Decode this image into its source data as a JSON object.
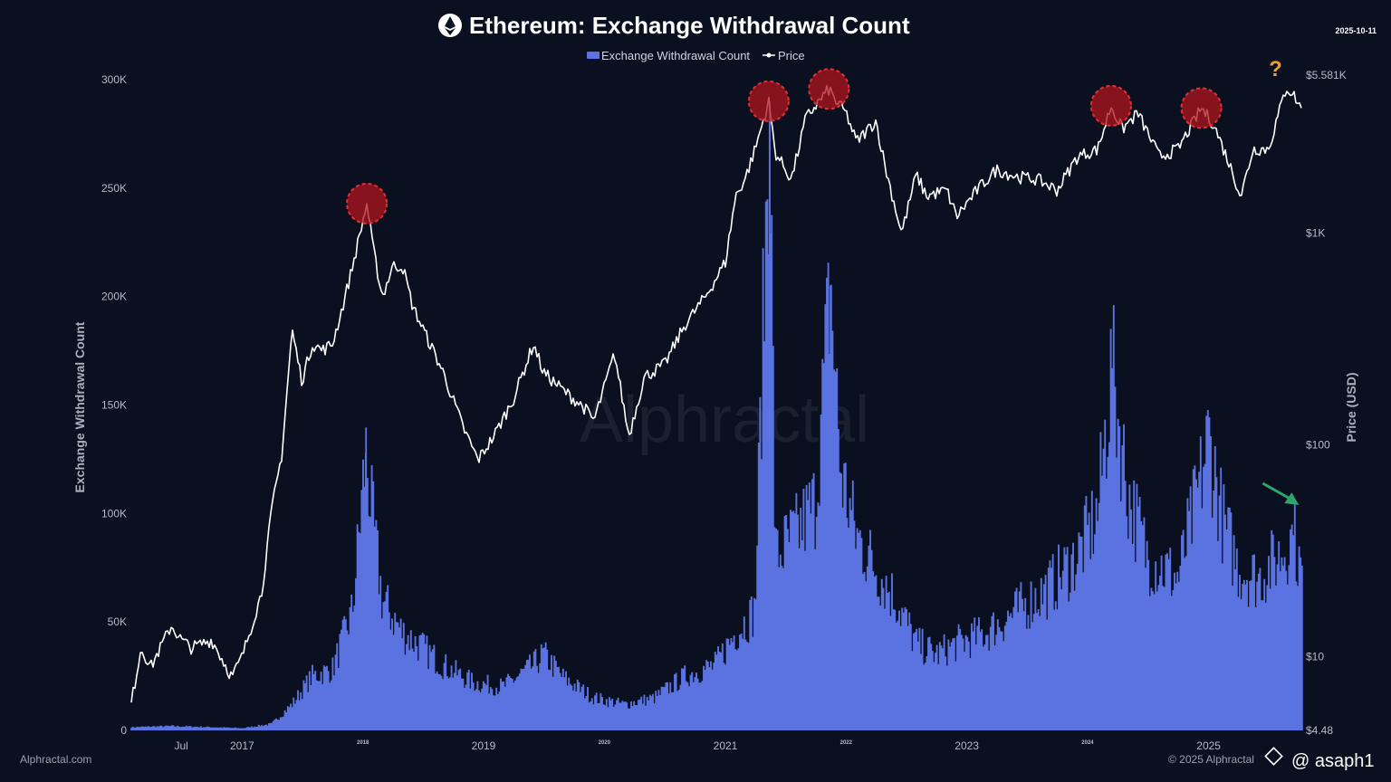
{
  "header": {
    "title": "Ethereum: Exchange Withdrawal Count",
    "date": "2025-10-11",
    "logo_icon": "ethereum-logo-icon"
  },
  "legend": {
    "items": [
      {
        "label": "Exchange Withdrawal Count",
        "color": "#5b73e0"
      },
      {
        "label": "Price",
        "color": "#ffffff"
      }
    ]
  },
  "footer": {
    "left": "Alphractal.com",
    "right": "© 2025 Alphractal",
    "credit": "@ asaph1"
  },
  "watermark": "Alphractal",
  "annotation": {
    "question_mark": "?"
  },
  "colors": {
    "background": "#0b1020",
    "bars": "#5b73e0",
    "price": "#ffffff",
    "peak_marker": "#b0141e",
    "arrow": "#2fa36b"
  },
  "chart_data": {
    "type": "area",
    "title": "Ethereum: Exchange Withdrawal Count",
    "xlabel": "",
    "ylabel": "Exchange Withdrawal Count",
    "y2label": "Price (USD)",
    "ylim": [
      0,
      300000
    ],
    "y2lim": [
      4.48,
      5581
    ],
    "y2scale": "log",
    "x_ticks": [
      {
        "label": "Jul",
        "x": "2016-07-01",
        "size": "normal"
      },
      {
        "label": "2017",
        "x": "2017-01-01",
        "size": "normal"
      },
      {
        "label": "2018",
        "x": "2018-01-01",
        "size": "small"
      },
      {
        "label": "2019",
        "x": "2019-01-01",
        "size": "normal"
      },
      {
        "label": "2020",
        "x": "2020-01-01",
        "size": "small"
      },
      {
        "label": "2021",
        "x": "2021-01-01",
        "size": "normal"
      },
      {
        "label": "2022",
        "x": "2022-01-01",
        "size": "small"
      },
      {
        "label": "2023",
        "x": "2023-01-01",
        "size": "normal"
      },
      {
        "label": "2024",
        "x": "2024-01-01",
        "size": "small"
      },
      {
        "label": "2025",
        "x": "2025-01-01",
        "size": "normal"
      }
    ],
    "y_ticks": [
      {
        "label": "0",
        "value": 0
      },
      {
        "label": "50K",
        "value": 50000
      },
      {
        "label": "100K",
        "value": 100000
      },
      {
        "label": "150K",
        "value": 150000
      },
      {
        "label": "200K",
        "value": 200000
      },
      {
        "label": "250K",
        "value": 250000
      },
      {
        "label": "300K",
        "value": 300000
      }
    ],
    "y2_ticks": [
      {
        "label": "$4.48",
        "value": 4.48
      },
      {
        "label": "$10",
        "value": 10
      },
      {
        "label": "$100",
        "value": 100
      },
      {
        "label": "$1K",
        "value": 1000
      },
      {
        "label": "$5.581K",
        "value": 5581
      }
    ],
    "series": [
      {
        "name": "Exchange Withdrawal Count",
        "type": "area",
        "axis": "left",
        "points": [
          [
            "2016-02-01",
            1500
          ],
          [
            "2016-06-01",
            2000
          ],
          [
            "2016-10-01",
            1500
          ],
          [
            "2017-01-01",
            1000
          ],
          [
            "2017-04-01",
            3000
          ],
          [
            "2017-06-01",
            12000
          ],
          [
            "2017-08-01",
            25000
          ],
          [
            "2017-10-01",
            28000
          ],
          [
            "2017-12-01",
            55000
          ],
          [
            "2018-01-10",
            128000
          ],
          [
            "2018-02-01",
            95000
          ],
          [
            "2018-03-01",
            60000
          ],
          [
            "2018-05-01",
            45000
          ],
          [
            "2018-07-01",
            38000
          ],
          [
            "2018-09-01",
            30000
          ],
          [
            "2018-12-01",
            22000
          ],
          [
            "2019-03-01",
            20000
          ],
          [
            "2019-06-01",
            30000
          ],
          [
            "2019-07-01",
            35000
          ],
          [
            "2019-09-01",
            24000
          ],
          [
            "2019-12-01",
            15000
          ],
          [
            "2020-03-01",
            12000
          ],
          [
            "2020-06-01",
            15000
          ],
          [
            "2020-09-01",
            25000
          ],
          [
            "2020-12-01",
            30000
          ],
          [
            "2021-02-01",
            45000
          ],
          [
            "2021-04-01",
            55000
          ],
          [
            "2021-05-15",
            290000
          ],
          [
            "2021-06-01",
            80000
          ],
          [
            "2021-08-01",
            90000
          ],
          [
            "2021-10-01",
            105000
          ],
          [
            "2021-11-15",
            205000
          ],
          [
            "2021-12-15",
            120000
          ],
          [
            "2022-02-01",
            90000
          ],
          [
            "2022-04-01",
            75000
          ],
          [
            "2022-06-01",
            60000
          ],
          [
            "2022-08-01",
            40000
          ],
          [
            "2022-10-01",
            35000
          ],
          [
            "2022-12-01",
            40000
          ],
          [
            "2023-03-01",
            45000
          ],
          [
            "2023-06-01",
            55000
          ],
          [
            "2023-09-01",
            65000
          ],
          [
            "2023-12-01",
            80000
          ],
          [
            "2024-02-01",
            100000
          ],
          [
            "2024-03-15",
            167000
          ],
          [
            "2024-05-01",
            110000
          ],
          [
            "2024-07-01",
            80000
          ],
          [
            "2024-10-01",
            70000
          ],
          [
            "2024-12-01",
            110000
          ],
          [
            "2025-01-01",
            135000
          ],
          [
            "2025-02-15",
            95000
          ],
          [
            "2025-04-01",
            75000
          ],
          [
            "2025-06-01",
            70000
          ],
          [
            "2025-08-01",
            80000
          ],
          [
            "2025-09-15",
            90000
          ],
          [
            "2025-10-11",
            70000
          ]
        ]
      },
      {
        "name": "Price",
        "type": "line",
        "axis": "right",
        "points": [
          [
            "2016-02-01",
            6
          ],
          [
            "2016-03-01",
            11
          ],
          [
            "2016-04-01",
            9
          ],
          [
            "2016-06-01",
            14
          ],
          [
            "2016-07-01",
            12
          ],
          [
            "2016-08-01",
            11
          ],
          [
            "2016-10-01",
            12
          ],
          [
            "2016-12-01",
            8
          ],
          [
            "2017-01-01",
            10
          ],
          [
            "2017-03-01",
            20
          ],
          [
            "2017-04-01",
            50
          ],
          [
            "2017-05-01",
            90
          ],
          [
            "2017-06-01",
            350
          ],
          [
            "2017-07-01",
            200
          ],
          [
            "2017-08-01",
            300
          ],
          [
            "2017-09-01",
            280
          ],
          [
            "2017-10-01",
            300
          ],
          [
            "2017-11-01",
            450
          ],
          [
            "2017-12-01",
            700
          ],
          [
            "2018-01-13",
            1380
          ],
          [
            "2018-02-01",
            850
          ],
          [
            "2018-03-01",
            500
          ],
          [
            "2018-04-01",
            700
          ],
          [
            "2018-05-01",
            700
          ],
          [
            "2018-06-01",
            450
          ],
          [
            "2018-08-01",
            280
          ],
          [
            "2018-09-01",
            220
          ],
          [
            "2018-11-01",
            120
          ],
          [
            "2018-12-15",
            85
          ],
          [
            "2019-02-01",
            110
          ],
          [
            "2019-04-01",
            165
          ],
          [
            "2019-06-01",
            300
          ],
          [
            "2019-07-01",
            220
          ],
          [
            "2019-09-01",
            180
          ],
          [
            "2019-11-01",
            150
          ],
          [
            "2019-12-01",
            130
          ],
          [
            "2020-02-01",
            270
          ],
          [
            "2020-03-15",
            110
          ],
          [
            "2020-05-01",
            210
          ],
          [
            "2020-07-01",
            240
          ],
          [
            "2020-09-01",
            370
          ],
          [
            "2020-11-01",
            500
          ],
          [
            "2021-01-01",
            730
          ],
          [
            "2021-02-01",
            1500
          ],
          [
            "2021-03-01",
            1800
          ],
          [
            "2021-04-01",
            2500
          ],
          [
            "2021-05-12",
            4200
          ],
          [
            "2021-06-01",
            2400
          ],
          [
            "2021-07-20",
            1800
          ],
          [
            "2021-09-01",
            3500
          ],
          [
            "2021-11-10",
            4800
          ],
          [
            "2021-12-01",
            4200
          ],
          [
            "2022-01-01",
            3700
          ],
          [
            "2022-02-01",
            2700
          ],
          [
            "2022-04-01",
            3400
          ],
          [
            "2022-05-01",
            2000
          ],
          [
            "2022-06-18",
            1000
          ],
          [
            "2022-08-01",
            1900
          ],
          [
            "2022-09-01",
            1500
          ],
          [
            "2022-11-01",
            1600
          ],
          [
            "2022-12-01",
            1200
          ],
          [
            "2023-02-01",
            1600
          ],
          [
            "2023-04-01",
            2000
          ],
          [
            "2023-06-01",
            1850
          ],
          [
            "2023-08-01",
            1800
          ],
          [
            "2023-10-01",
            1600
          ],
          [
            "2023-12-01",
            2300
          ],
          [
            "2024-02-01",
            2500
          ],
          [
            "2024-03-12",
            4000
          ],
          [
            "2024-04-15",
            3100
          ],
          [
            "2024-06-01",
            3700
          ],
          [
            "2024-08-05",
            2300
          ],
          [
            "2024-10-01",
            2500
          ],
          [
            "2024-12-10",
            3900
          ],
          [
            "2025-01-15",
            3300
          ],
          [
            "2025-03-01",
            2200
          ],
          [
            "2025-04-09",
            1500
          ],
          [
            "2025-05-15",
            2500
          ],
          [
            "2025-07-01",
            2500
          ],
          [
            "2025-08-24",
            4900
          ],
          [
            "2025-09-15",
            4500
          ],
          [
            "2025-10-11",
            3800
          ]
        ]
      }
    ],
    "annotations": [
      {
        "type": "circle",
        "label": "peak",
        "x": "2018-01-13",
        "y_price": 1380
      },
      {
        "type": "circle",
        "label": "peak",
        "x": "2021-05-12",
        "y_price": 4200
      },
      {
        "type": "circle",
        "label": "peak",
        "x": "2021-11-10",
        "y_price": 4800
      },
      {
        "type": "circle",
        "label": "peak",
        "x": "2024-03-12",
        "y_price": 4000
      },
      {
        "type": "circle",
        "label": "peak",
        "x": "2024-12-10",
        "y_price": 3900
      },
      {
        "type": "text",
        "label": "?",
        "x": "2025-08-24"
      },
      {
        "type": "arrow",
        "label": "down",
        "x": "2025-10-01"
      }
    ],
    "grid": false,
    "legend_position": "top-center"
  }
}
